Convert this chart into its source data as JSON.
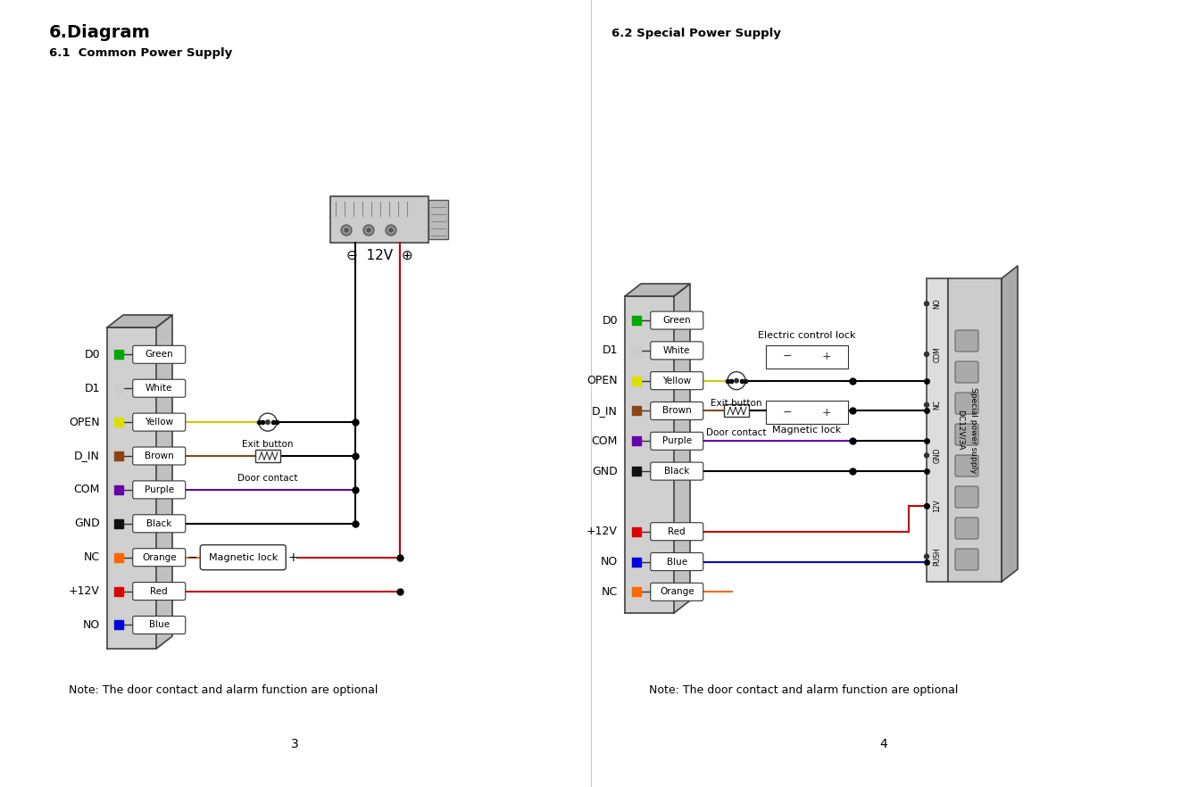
{
  "title": "6.Diagram",
  "subtitle1": "6.1  Common Power Supply",
  "subtitle2": "6.2 Special Power Supply",
  "note": "Note: The door contact and alarm function are optional",
  "page_left": "3",
  "page_right": "4",
  "pins_left": [
    "D0",
    "D1",
    "OPEN",
    "D_IN",
    "COM",
    "GND",
    "NC",
    "+12V",
    "NO"
  ],
  "wire_colors_left": [
    "#00aa00",
    "#cccccc",
    "#dddd00",
    "#8B4513",
    "#6600aa",
    "#111111",
    "#ff6600",
    "#dd0000",
    "#0000dd"
  ],
  "wire_labels_left": [
    "Green",
    "White",
    "Yellow",
    "Brown",
    "Purple",
    "Black",
    "Orange",
    "Red",
    "Blue"
  ],
  "pins_right_display": [
    "D0",
    "D1",
    "OPEN",
    "D_IN",
    "COM",
    "GND",
    "",
    "+12V",
    "NO",
    "NC"
  ],
  "wire_colors_right": [
    "#00aa00",
    "#cccccc",
    "#dddd00",
    "#8B4513",
    "#6600aa",
    "#111111",
    "none",
    "#dd0000",
    "#0000dd",
    "#ff6600"
  ],
  "wire_labels_right": [
    "Green",
    "White",
    "Yellow",
    "Brown",
    "Purple",
    "Black",
    "",
    "Red",
    "Blue",
    "Orange"
  ],
  "bg_color": "#ffffff",
  "text_color": "#000000"
}
